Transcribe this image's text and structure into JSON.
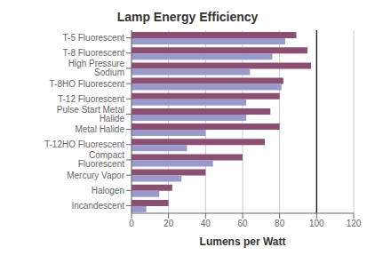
{
  "chart_data": {
    "type": "bar",
    "orientation": "horizontal",
    "title": "Lamp Energy Efficiency",
    "xlabel": "Lumens per Watt",
    "categories": [
      "T-5 Fluorescent",
      "T-8 Fluorescent",
      "High Pressure Sodium",
      "T-8HO Fluorescent",
      "T-12 Fluorescent",
      "Pulse Start Metal Halide",
      "Metal Halide",
      "T-12HO Fluorescent",
      "Compact Fluorescent",
      "Mercury Vapor",
      "Halogen",
      "Incandescent"
    ],
    "series": [
      {
        "color": "#8B4F72",
        "values": [
          89,
          95,
          97,
          82,
          80,
          75,
          80,
          72,
          60,
          40,
          22,
          20
        ]
      },
      {
        "color": "#9999CC",
        "values": [
          83,
          76,
          64,
          81,
          62,
          62,
          40,
          30,
          44,
          27,
          15,
          8
        ]
      }
    ],
    "xlim": [
      0,
      120
    ],
    "xticks": [
      0,
      20,
      40,
      60,
      80,
      100,
      120
    ],
    "grid": true,
    "vline_x": 100
  }
}
